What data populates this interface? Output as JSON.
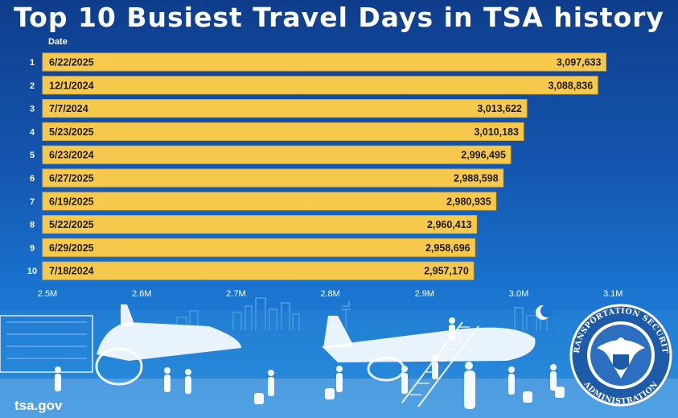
{
  "header": {
    "title": "Top 10 Busiest Travel Days in TSA history"
  },
  "footer": {
    "site": "tsa.gov"
  },
  "seal": {
    "text": "TRANSPORTATION SECURITY ADMINISTRATION"
  },
  "colors": {
    "bar": "#f6c84c",
    "bar_border": "#e3b23a",
    "text_on_bar": "#1c1c1c",
    "axis_text": "#ffffff"
  },
  "chart_data": {
    "type": "bar",
    "orientation": "horizontal",
    "title": "Top 10 Busiest Travel Days in TSA history",
    "xlabel": "",
    "ylabel": "Date",
    "xlim": [
      2500000,
      3180000
    ],
    "x_ticks": [
      "2.5M",
      "2.6M",
      "2.7M",
      "2.8M",
      "2.9M",
      "3.0M",
      "3.1M"
    ],
    "x_tick_values": [
      2500000,
      2600000,
      2700000,
      2800000,
      2900000,
      3000000,
      3100000
    ],
    "ranks": [
      "1",
      "2",
      "3",
      "4",
      "5",
      "6",
      "7",
      "8",
      "9",
      "10"
    ],
    "categories": [
      "6/22/2025",
      "12/1/2024",
      "7/7/2024",
      "5/23/2025",
      "6/23/2024",
      "6/27/2025",
      "6/19/2025",
      "5/22/2025",
      "6/29/2025",
      "7/18/2024"
    ],
    "values": [
      3097633,
      3088836,
      3013622,
      3010183,
      2996495,
      2988598,
      2980935,
      2960413,
      2958696,
      2957170
    ],
    "value_labels": [
      "3,097,633",
      "3,088,836",
      "3,013,622",
      "3,010,183",
      "2,996,495",
      "2,988,598",
      "2,980,935",
      "2,960,413",
      "2,958,696",
      "2,957,170"
    ],
    "grid": false,
    "legend": "none"
  }
}
